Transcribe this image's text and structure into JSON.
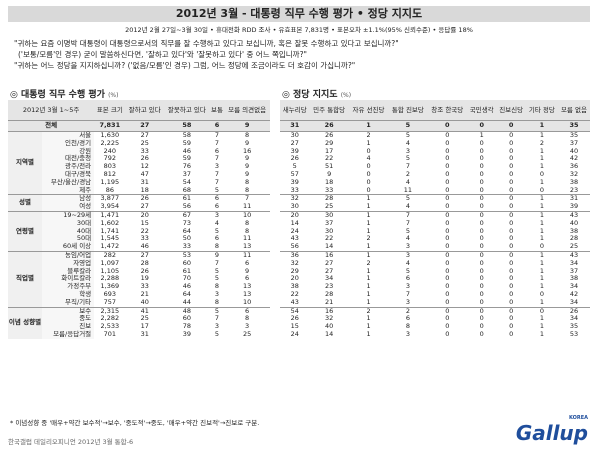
{
  "header": {
    "title": "2012년 3월 - 대통령 직무 수행 평가 • 정당 지지도",
    "subtitle": "2012년 2월 27일~3월 30일 • 휴대전화 RDD 조사 • 유효표본 7,831명 • 표본오차 ±1.1%(95% 신뢰수준) • 응답률 18%"
  },
  "questions": [
    "\"귀하는 요즘 이명박 대통령이 대통령으로서의 직무를 잘 수행하고 있다고 보십니까, 혹은 잘못 수행하고 있다고 보십니까?\"",
    "('보통/모름'인 경우) 굳이 말씀하신다면, '잘하고 있다'와 '잘못하고 있다' 중 어느 쪽입니까?\"",
    "\"귀하는 어느 정당을 지지하십니까? ('없음/모름'인 경우) 그럼, 어느 정당에 조금이라도 더 호감이 가십니까?\""
  ],
  "left": {
    "title": "대통령 직무 수행 평가",
    "unit": "(%)",
    "period": "2012년 3월 1~5주",
    "headers": [
      "표본 크기",
      "잘하고 있다",
      "잘못하고 있다",
      "보통",
      "모름 의견없음"
    ]
  },
  "right": {
    "title": "정당 지지도",
    "unit": "(%)",
    "headers": [
      "새누리당",
      "민주 통합당",
      "자유 선진당",
      "통합 진보당",
      "창조 한국당",
      "국민생각",
      "진보신당",
      "기타 정당",
      "모름 없음"
    ]
  },
  "total": {
    "label": "전체",
    "n": "7,831",
    "job": [
      27,
      58,
      6,
      9
    ],
    "party": [
      31,
      26,
      1,
      5,
      0,
      0,
      0,
      1,
      35
    ]
  },
  "groups": [
    {
      "name": "지역별",
      "rows": [
        {
          "label": "서울",
          "n": "1,630",
          "job": [
            27,
            58,
            7,
            8
          ],
          "party": [
            30,
            26,
            2,
            5,
            0,
            1,
            0,
            1,
            35
          ]
        },
        {
          "label": "인천/경기",
          "n": "2,225",
          "job": [
            25,
            59,
            7,
            9
          ],
          "party": [
            27,
            29,
            1,
            4,
            0,
            0,
            0,
            2,
            37
          ]
        },
        {
          "label": "강원",
          "n": "240",
          "job": [
            33,
            46,
            6,
            16
          ],
          "party": [
            39,
            17,
            0,
            3,
            0,
            0,
            0,
            1,
            40
          ]
        },
        {
          "label": "대전/충청",
          "n": "792",
          "job": [
            26,
            59,
            7,
            9
          ],
          "party": [
            26,
            22,
            4,
            5,
            0,
            0,
            0,
            1,
            42
          ]
        },
        {
          "label": "광주/전라",
          "n": "803",
          "job": [
            12,
            76,
            3,
            9
          ],
          "party": [
            5,
            51,
            0,
            7,
            0,
            0,
            0,
            1,
            36
          ]
        },
        {
          "label": "대구/경북",
          "n": "812",
          "job": [
            47,
            37,
            7,
            9
          ],
          "party": [
            57,
            9,
            0,
            2,
            0,
            0,
            0,
            0,
            32
          ]
        },
        {
          "label": "부산/울산/경남",
          "n": "1,195",
          "job": [
            31,
            54,
            7,
            8
          ],
          "party": [
            39,
            18,
            0,
            4,
            0,
            0,
            0,
            1,
            38
          ]
        },
        {
          "label": "제주",
          "n": "86",
          "job": [
            18,
            68,
            5,
            8
          ],
          "party": [
            33,
            33,
            0,
            11,
            0,
            0,
            0,
            0,
            23
          ]
        }
      ]
    },
    {
      "name": "성별",
      "rows": [
        {
          "label": "남성",
          "n": "3,877",
          "job": [
            26,
            61,
            6,
            7
          ],
          "party": [
            32,
            28,
            1,
            5,
            0,
            0,
            0,
            1,
            31
          ]
        },
        {
          "label": "여성",
          "n": "3,954",
          "job": [
            27,
            56,
            6,
            11
          ],
          "party": [
            30,
            25,
            1,
            4,
            0,
            0,
            0,
            1,
            39
          ]
        }
      ]
    },
    {
      "name": "연령별",
      "rows": [
        {
          "label": "19~29세",
          "n": "1,471",
          "job": [
            20,
            67,
            3,
            10
          ],
          "party": [
            20,
            30,
            1,
            7,
            0,
            0,
            0,
            1,
            43
          ]
        },
        {
          "label": "30대",
          "n": "1,602",
          "job": [
            15,
            73,
            4,
            8
          ],
          "party": [
            14,
            37,
            1,
            7,
            0,
            0,
            0,
            1,
            40
          ]
        },
        {
          "label": "40대",
          "n": "1,741",
          "job": [
            22,
            64,
            5,
            8
          ],
          "party": [
            24,
            30,
            1,
            5,
            0,
            0,
            0,
            1,
            38
          ]
        },
        {
          "label": "50대",
          "n": "1,545",
          "job": [
            33,
            50,
            6,
            11
          ],
          "party": [
            43,
            22,
            2,
            4,
            0,
            0,
            0,
            1,
            28
          ]
        },
        {
          "label": "60세 이상",
          "n": "1,472",
          "job": [
            46,
            33,
            8,
            13
          ],
          "party": [
            56,
            14,
            1,
            3,
            0,
            0,
            0,
            0,
            25
          ]
        }
      ]
    },
    {
      "name": "직업별",
      "rows": [
        {
          "label": "농임/어업",
          "n": "282",
          "job": [
            27,
            53,
            9,
            11
          ],
          "party": [
            36,
            16,
            1,
            3,
            0,
            0,
            0,
            1,
            43
          ]
        },
        {
          "label": "자영업",
          "n": "1,097",
          "job": [
            28,
            60,
            7,
            6
          ],
          "party": [
            32,
            27,
            2,
            4,
            0,
            0,
            0,
            1,
            34
          ]
        },
        {
          "label": "블루칼라",
          "n": "1,105",
          "job": [
            26,
            61,
            5,
            9
          ],
          "party": [
            29,
            27,
            1,
            5,
            0,
            0,
            0,
            1,
            37
          ]
        },
        {
          "label": "화이트칼라",
          "n": "2,288",
          "job": [
            19,
            70,
            5,
            6
          ],
          "party": [
            20,
            34,
            1,
            6,
            0,
            0,
            0,
            1,
            38
          ]
        },
        {
          "label": "가정주부",
          "n": "1,369",
          "job": [
            33,
            46,
            8,
            13
          ],
          "party": [
            38,
            23,
            1,
            3,
            0,
            0,
            0,
            1,
            34
          ]
        },
        {
          "label": "학생",
          "n": "693",
          "job": [
            21,
            64,
            3,
            13
          ],
          "party": [
            22,
            28,
            1,
            7,
            0,
            0,
            0,
            0,
            42
          ]
        },
        {
          "label": "무직/기타",
          "n": "757",
          "job": [
            40,
            44,
            8,
            10
          ],
          "party": [
            43,
            21,
            1,
            3,
            0,
            0,
            0,
            1,
            34
          ]
        }
      ]
    },
    {
      "name": "이념 성향별",
      "rows": [
        {
          "label": "보수",
          "n": "2,315",
          "job": [
            41,
            48,
            5,
            6
          ],
          "party": [
            54,
            16,
            2,
            2,
            0,
            0,
            0,
            0,
            26
          ]
        },
        {
          "label": "중도",
          "n": "2,282",
          "job": [
            25,
            60,
            7,
            8
          ],
          "party": [
            26,
            32,
            1,
            6,
            0,
            0,
            0,
            1,
            34
          ]
        },
        {
          "label": "진보",
          "n": "2,533",
          "job": [
            17,
            78,
            3,
            3
          ],
          "party": [
            15,
            40,
            1,
            8,
            0,
            0,
            0,
            1,
            35
          ]
        },
        {
          "label": "모름/응답거절",
          "n": "701",
          "job": [
            31,
            39,
            5,
            25
          ],
          "party": [
            24,
            14,
            1,
            3,
            0,
            0,
            0,
            1,
            53
          ]
        }
      ]
    }
  ],
  "footnote": "* 이념성향 중 '매우+약간 보수적'→보수, '중도적'→중도, '매우+약간 진보적'→진보로 구분.",
  "footer": {
    "source": "한국갤럽 데일리오피니언 2012년 3월 통합-6",
    "logo": "Gallup",
    "logo_sub": "KOREA"
  }
}
